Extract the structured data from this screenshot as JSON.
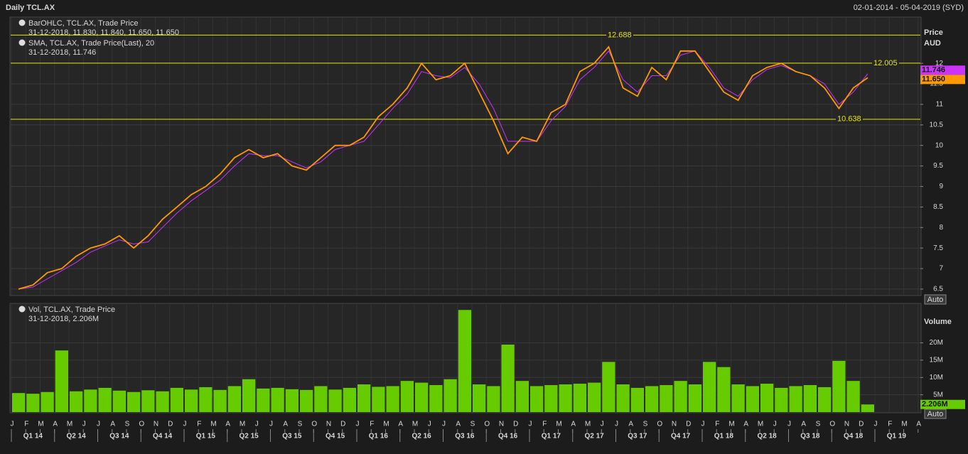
{
  "chart_data": [
    {
      "type": "line",
      "title": "Daily TCL.AX",
      "subtitle": "02-01-2014 - 05-04-2019 (SYD)",
      "ylabel": "Price",
      "yunit": "AUD",
      "button": "Auto",
      "x": [
        "2014-01",
        "2014-02",
        "2014-03",
        "2014-04",
        "2014-05",
        "2014-06",
        "2014-07",
        "2014-08",
        "2014-09",
        "2014-10",
        "2014-11",
        "2014-12",
        "2015-01",
        "2015-02",
        "2015-03",
        "2015-04",
        "2015-05",
        "2015-06",
        "2015-07",
        "2015-08",
        "2015-09",
        "2015-10",
        "2015-11",
        "2015-12",
        "2016-01",
        "2016-02",
        "2016-03",
        "2016-04",
        "2016-05",
        "2016-06",
        "2016-07",
        "2016-08",
        "2016-09",
        "2016-10",
        "2016-11",
        "2016-12",
        "2017-01",
        "2017-02",
        "2017-03",
        "2017-04",
        "2017-05",
        "2017-06",
        "2017-07",
        "2017-08",
        "2017-09",
        "2017-10",
        "2017-11",
        "2017-12",
        "2018-01",
        "2018-02",
        "2018-03",
        "2018-04",
        "2018-05",
        "2018-06",
        "2018-07",
        "2018-08",
        "2018-09",
        "2018-10",
        "2018-11",
        "2018-12"
      ],
      "series": [
        {
          "name": "BarOHLC, TCL.AX, Trade Price",
          "last": "31-12-2018, 11.830, 11.840, 11.650, 11.650",
          "color": "#ff9900",
          "values": [
            6.5,
            6.6,
            6.9,
            7.0,
            7.3,
            7.5,
            7.6,
            7.8,
            7.5,
            7.8,
            8.2,
            8.5,
            8.8,
            9.0,
            9.3,
            9.7,
            9.9,
            9.7,
            9.8,
            9.5,
            9.4,
            9.7,
            10.0,
            10.0,
            10.2,
            10.7,
            11.0,
            11.4,
            12.0,
            11.6,
            11.7,
            12.0,
            11.3,
            10.6,
            9.8,
            10.2,
            10.1,
            10.8,
            11.0,
            11.8,
            12.0,
            12.4,
            11.4,
            11.2,
            11.9,
            11.6,
            12.3,
            12.3,
            11.8,
            11.3,
            11.1,
            11.7,
            11.9,
            12.0,
            11.8,
            11.7,
            11.4,
            10.9,
            11.4,
            11.65
          ]
        },
        {
          "name": "SMA, TCL.AX, Trade Price(Last),  20",
          "last": "31-12-2018, 11.746",
          "color": "#cc33ff",
          "values": [
            6.5,
            6.55,
            6.75,
            6.95,
            7.15,
            7.4,
            7.55,
            7.7,
            7.6,
            7.65,
            8.0,
            8.35,
            8.65,
            8.9,
            9.15,
            9.5,
            9.8,
            9.75,
            9.75,
            9.6,
            9.45,
            9.6,
            9.9,
            10.0,
            10.1,
            10.5,
            10.9,
            11.25,
            11.8,
            11.7,
            11.65,
            11.9,
            11.5,
            10.9,
            10.1,
            10.1,
            10.1,
            10.6,
            10.95,
            11.6,
            11.9,
            12.3,
            11.6,
            11.3,
            11.7,
            11.7,
            12.2,
            12.3,
            11.9,
            11.4,
            11.2,
            11.6,
            11.85,
            11.95,
            11.8,
            11.7,
            11.5,
            11.0,
            11.3,
            11.746
          ]
        }
      ],
      "levels": [
        12.688,
        12.005,
        10.638
      ],
      "level_color": "#e6e600",
      "tags": [
        {
          "value": 11.746,
          "color": "#cc33ff"
        },
        {
          "value": 11.65,
          "label": "11.650",
          "color": "#ff9900"
        }
      ],
      "ylim": [
        6.36,
        13.11
      ],
      "yticks": [
        6.5,
        7,
        7.5,
        8,
        8.5,
        9,
        9.5,
        10,
        10.5,
        11,
        11.5,
        12
      ],
      "grid": true
    },
    {
      "type": "bar",
      "ylabel": "Volume",
      "button": "Auto",
      "series": [
        {
          "name": "Vol, TCL.AX, Trade Price",
          "last": "31-12-2018, 2.206M",
          "color": "#66cc00",
          "values": [
            5.5,
            5.3,
            5.8,
            17.8,
            6.0,
            6.5,
            7.0,
            6.2,
            5.8,
            6.3,
            6.0,
            7.0,
            6.5,
            7.2,
            6.4,
            7.5,
            9.5,
            6.8,
            7.0,
            6.6,
            6.4,
            7.5,
            6.5,
            7.0,
            8.0,
            7.3,
            7.5,
            9.0,
            8.5,
            7.8,
            9.5,
            29.5,
            8.0,
            7.5,
            19.5,
            9.0,
            7.5,
            7.8,
            8.0,
            8.2,
            8.5,
            14.5,
            8.0,
            7.0,
            7.5,
            7.8,
            9.0,
            8.0,
            14.5,
            13.0,
            8.0,
            7.5,
            8.2,
            7.0,
            7.5,
            7.8,
            7.2,
            14.8,
            9.0,
            2.206
          ]
        }
      ],
      "tags": [
        {
          "value": 2.206,
          "label": "2.206M",
          "color": "#66cc00"
        }
      ],
      "ylim": [
        0,
        31.2
      ],
      "yticks": [
        {
          "value": 5,
          "label": "5M"
        },
        {
          "value": 10,
          "label": "10M"
        },
        {
          "value": 15,
          "label": "15M"
        },
        {
          "value": 20,
          "label": "20M"
        }
      ],
      "month_labels": [
        "J",
        "F",
        "M",
        "A",
        "M",
        "J",
        "J",
        "A",
        "S",
        "O",
        "N",
        "D",
        "J",
        "F",
        "M",
        "A",
        "M",
        "J",
        "J",
        "A",
        "S",
        "O",
        "N",
        "D",
        "J",
        "F",
        "M",
        "A",
        "M",
        "J",
        "J",
        "A",
        "S",
        "O",
        "N",
        "D",
        "J",
        "F",
        "M",
        "A",
        "M",
        "J",
        "J",
        "A",
        "S",
        "O",
        "N",
        "D",
        "J",
        "F",
        "M",
        "A",
        "M",
        "J",
        "J",
        "A",
        "S",
        "O",
        "N",
        "D",
        "J",
        "F",
        "M",
        "A"
      ],
      "quarter_labels": [
        "Q1 14",
        "Q2 14",
        "Q3 14",
        "Q4 14",
        "Q1 15",
        "Q2 15",
        "Q3 15",
        "Q4 15",
        "Q1 16",
        "Q2 16",
        "Q3 16",
        "Q4 16",
        "Q1 17",
        "Q2 17",
        "Q3 17",
        "Q4 17",
        "Q1 18",
        "Q2 18",
        "Q3 18",
        "Q4 18",
        "Q1 19"
      ],
      "grid": true
    }
  ]
}
